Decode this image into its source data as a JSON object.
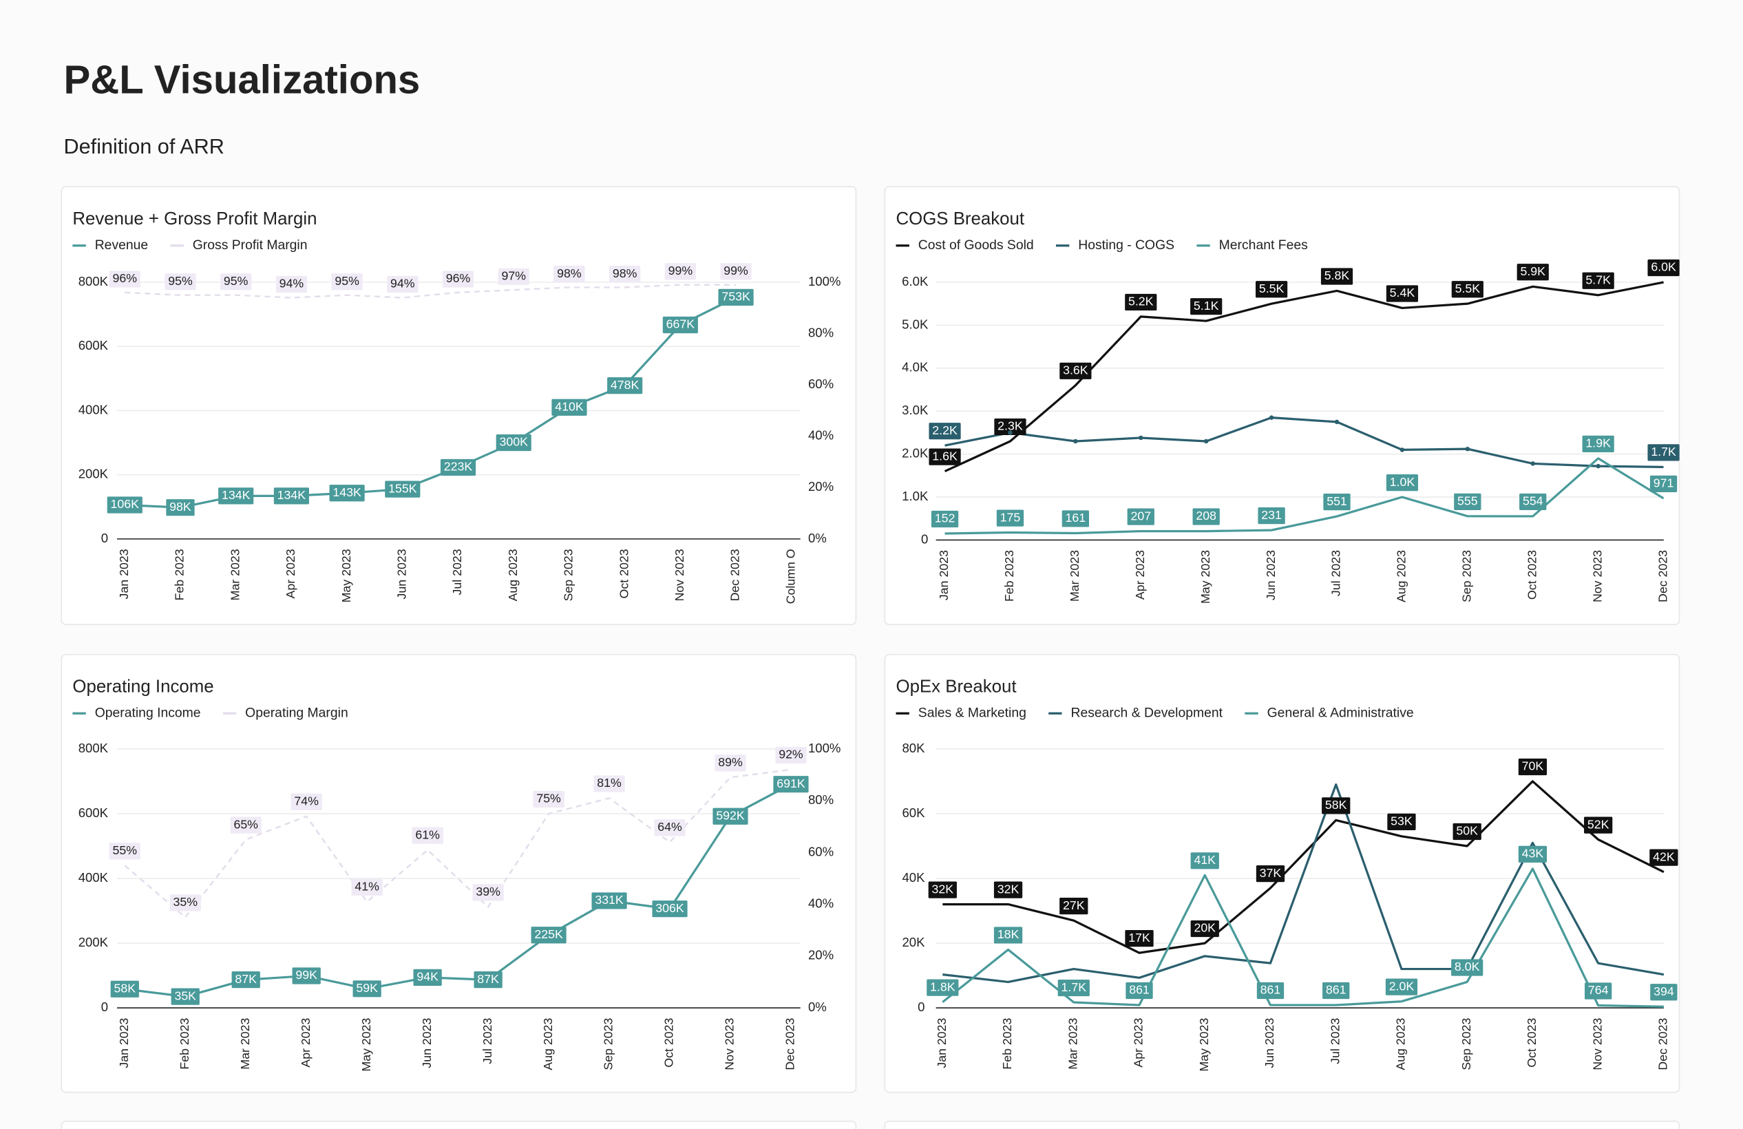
{
  "page": {
    "title": "P&L Visualizations",
    "subtitle": "Definition of ARR"
  },
  "chart_data": [
    {
      "type": "line",
      "title": "Revenue + Gross Profit Margin",
      "categories": [
        "Jan 2023",
        "Feb 2023",
        "Mar 2023",
        "Apr 2023",
        "May 2023",
        "Jun 2023",
        "Jul 2023",
        "Aug 2023",
        "Sep 2023",
        "Oct 2023",
        "Nov 2023",
        "Dec 2023",
        "Column O"
      ],
      "series": [
        {
          "name": "Revenue",
          "color": "#4a9a9a",
          "values": [
            106000,
            98000,
            134000,
            134000,
            143000,
            155000,
            223000,
            300000,
            410000,
            478000,
            667000,
            753000,
            null
          ],
          "value_labels": [
            "106K",
            "98K",
            "134K",
            "134K",
            "143K",
            "155K",
            "223K",
            "300K",
            "410K",
            "478K",
            "667K",
            "753K",
            null
          ]
        },
        {
          "name": "Gross Profit Margin",
          "color": "#e3dcea",
          "line_style": "dashed",
          "axis": "y2",
          "values": [
            96,
            95,
            95,
            94,
            95,
            94,
            96,
            97,
            98,
            98,
            99,
            99,
            null
          ],
          "value_labels": [
            "96%",
            "95%",
            "95%",
            "94%",
            "95%",
            "94%",
            "96%",
            "97%",
            "98%",
            "98%",
            "99%",
            "99%",
            null
          ]
        }
      ],
      "ylim": [
        0,
        800000
      ],
      "yticks": [
        0,
        {
          "value": 200000,
          "label": "200K"
        },
        {
          "value": 400000,
          "label": "400K"
        },
        {
          "value": 600000,
          "label": "600K"
        },
        {
          "value": 800000,
          "label": "800K"
        }
      ],
      "y2lim": [
        0,
        100
      ],
      "y2ticks": [
        {
          "value": 0,
          "label": "0%"
        },
        {
          "value": 20,
          "label": "20%"
        },
        {
          "value": 40,
          "label": "40%"
        },
        {
          "value": 60,
          "label": "60%"
        },
        {
          "value": 80,
          "label": "80%"
        },
        {
          "value": 100,
          "label": "100%"
        }
      ],
      "grid": true
    },
    {
      "type": "line",
      "title": "COGS Breakout",
      "categories": [
        "Jan 2023",
        "Feb 2023",
        "Mar 2023",
        "Apr 2023",
        "May 2023",
        "Jun 2023",
        "Jul 2023",
        "Aug 2023",
        "Sep 2023",
        "Oct 2023",
        "Nov 2023",
        "Dec 2023"
      ],
      "series": [
        {
          "name": "Cost of Goods Sold",
          "color": "#111111",
          "values": [
            1600,
            2300,
            3600,
            5200,
            5100,
            5500,
            5800,
            5400,
            5500,
            5900,
            5700,
            6000
          ],
          "value_labels": [
            "1.6K",
            "2.3K",
            "3.6K",
            "5.2K",
            "5.1K",
            "5.5K",
            "5.8K",
            "5.4K",
            "5.5K",
            "5.9K",
            "5.7K",
            "6.0K"
          ]
        },
        {
          "name": "Hosting - COGS",
          "color": "#2b5f6e",
          "values": [
            2200,
            2500,
            2300,
            2380,
            2300,
            2850,
            2750,
            2100,
            2120,
            1780,
            1720,
            1700
          ],
          "value_labels": [
            "2.2K",
            null,
            null,
            null,
            null,
            null,
            null,
            null,
            null,
            null,
            null,
            "1.7K"
          ]
        },
        {
          "name": "Merchant Fees",
          "color": "#4a9a9a",
          "values": [
            152,
            175,
            161,
            207,
            208,
            231,
            551,
            1000,
            555,
            554,
            1900,
            971
          ],
          "value_labels": [
            "152",
            "175",
            "161",
            "207",
            "208",
            "231",
            "551",
            "1.0K",
            "555",
            "554",
            "1.9K",
            "971"
          ]
        }
      ],
      "ylim": [
        0,
        6000
      ],
      "yticks": [
        0,
        {
          "value": 1000,
          "label": "1.0K"
        },
        {
          "value": 2000,
          "label": "2.0K"
        },
        {
          "value": 3000,
          "label": "3.0K"
        },
        {
          "value": 4000,
          "label": "4.0K"
        },
        {
          "value": 5000,
          "label": "5.0K"
        },
        {
          "value": 6000,
          "label": "6.0K"
        }
      ],
      "grid": true
    },
    {
      "type": "line",
      "title": "Operating Income",
      "categories": [
        "Jan 2023",
        "Feb 2023",
        "Mar 2023",
        "Apr 2023",
        "May 2023",
        "Jun 2023",
        "Jul 2023",
        "Aug 2023",
        "Sep 2023",
        "Oct 2023",
        "Nov 2023",
        "Dec 2023"
      ],
      "series": [
        {
          "name": "Operating Income",
          "color": "#4a9a9a",
          "values": [
            58000,
            35000,
            87000,
            99000,
            59000,
            94000,
            87000,
            225000,
            331000,
            306000,
            592000,
            691000
          ],
          "value_labels": [
            "58K",
            "35K",
            "87K",
            "99K",
            "59K",
            "94K",
            "87K",
            "225K",
            "331K",
            "306K",
            "592K",
            "691K"
          ]
        },
        {
          "name": "Operating Margin",
          "color": "#e3dcea",
          "line_style": "dashed",
          "axis": "y2",
          "values": [
            55,
            35,
            65,
            74,
            41,
            61,
            39,
            75,
            81,
            64,
            89,
            92
          ],
          "value_labels": [
            "55%",
            "35%",
            "65%",
            "74%",
            "41%",
            "61%",
            "39%",
            "75%",
            "81%",
            "64%",
            "89%",
            "92%"
          ]
        }
      ],
      "ylim": [
        0,
        800000
      ],
      "yticks": [
        0,
        {
          "value": 200000,
          "label": "200K"
        },
        {
          "value": 400000,
          "label": "400K"
        },
        {
          "value": 600000,
          "label": "600K"
        },
        {
          "value": 800000,
          "label": "800K"
        }
      ],
      "y2lim": [
        0,
        100
      ],
      "y2ticks": [
        {
          "value": 0,
          "label": "0%"
        },
        {
          "value": 20,
          "label": "20%"
        },
        {
          "value": 40,
          "label": "40%"
        },
        {
          "value": 60,
          "label": "60%"
        },
        {
          "value": 80,
          "label": "80%"
        },
        {
          "value": 100,
          "label": "100%"
        }
      ],
      "grid": true
    },
    {
      "type": "line",
      "title": "OpEx Breakout",
      "categories": [
        "Jan 2023",
        "Feb 2023",
        "Mar 2023",
        "Apr 2023",
        "May 2023",
        "Jun 2023",
        "Jul 2023",
        "Aug 2023",
        "Sep 2023",
        "Oct 2023",
        "Nov 2023",
        "Dec 2023"
      ],
      "series": [
        {
          "name": "Sales & Marketing",
          "color": "#111111",
          "values": [
            32000,
            32000,
            27000,
            17000,
            20000,
            37000,
            58000,
            53000,
            50000,
            70000,
            52000,
            42000
          ],
          "value_labels": [
            "32K",
            "32K",
            "27K",
            "17K",
            "20K",
            "37K",
            "58K",
            "53K",
            "50K",
            "70K",
            "52K",
            "42K"
          ]
        },
        {
          "name": "Research & Development",
          "color": "#2b5f6e",
          "values": [
            10300,
            8000,
            12000,
            9300,
            16000,
            13800,
            69000,
            12000,
            12000,
            51000,
            13800,
            10300
          ]
        },
        {
          "name": "General & Administrative",
          "color": "#4a9a9a",
          "values": [
            1800,
            18000,
            1700,
            861,
            41000,
            861,
            861,
            2000,
            8000,
            43000,
            764,
            394
          ],
          "value_labels": [
            "1.8K",
            "18K",
            "1.7K",
            "861",
            "41K",
            "861",
            "861",
            "2.0K",
            "8.0K",
            "43K",
            "764",
            "394"
          ]
        }
      ],
      "ylim": [
        0,
        80000
      ],
      "yticks": [
        0,
        {
          "value": 20000,
          "label": "20K"
        },
        {
          "value": 40000,
          "label": "40K"
        },
        {
          "value": 60000,
          "label": "60K"
        },
        {
          "value": 80000,
          "label": "80K"
        }
      ],
      "grid": true
    }
  ]
}
